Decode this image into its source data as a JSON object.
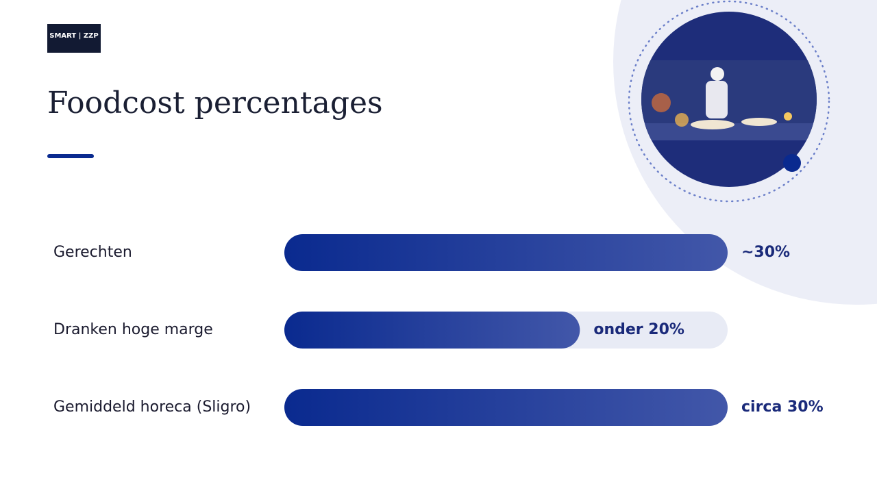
{
  "logo": "SMART | ZZP",
  "chart_data": {
    "type": "bar",
    "orientation": "horizontal",
    "title": "Foodcost percentages",
    "categories": [
      "Gerechten",
      "Dranken hoge marge",
      "Gemiddeld horeca (Sligro)"
    ],
    "values": [
      30,
      20,
      30
    ],
    "value_labels": [
      "~30%",
      "onder 20%",
      "circa 30%"
    ],
    "xlim": [
      0,
      30
    ],
    "color": "#0a2a8f"
  }
}
